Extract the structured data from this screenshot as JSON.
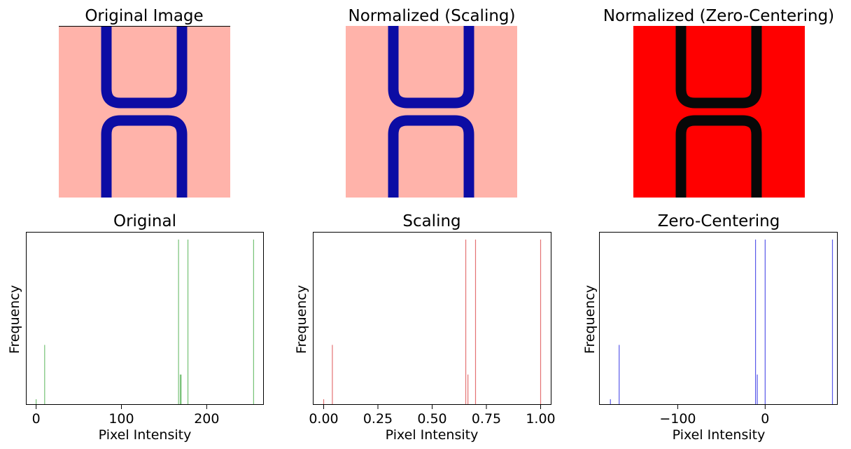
{
  "images": [
    {
      "title": "Original Image",
      "background": "#ffb3aa",
      "shape_color": "#0c0ca4"
    },
    {
      "title": "Normalized (Scaling)",
      "background": "#ffb3aa",
      "shape_color": "#0c0ca4"
    },
    {
      "title": "Normalized (Zero-Centering)",
      "background": "#ff0000",
      "shape_color": "#080808"
    }
  ],
  "chart_data": [
    {
      "type": "bar",
      "title": "Original",
      "xlabel": "Pixel Intensity",
      "ylabel": "Frequency",
      "color": "#2ca02c",
      "xlim": [
        -12,
        267
      ],
      "xticks": [
        0,
        100,
        200
      ],
      "tick_labels": [
        "0",
        "100",
        "200"
      ],
      "y_ticks_shown": false,
      "bars": [
        {
          "x": 0,
          "h": 0.03
        },
        {
          "x": 10,
          "h": 0.36
        },
        {
          "x": 167,
          "h": 1.0
        },
        {
          "x": 169,
          "h": 0.18
        },
        {
          "x": 170,
          "h": 0.18
        },
        {
          "x": 178,
          "h": 1.0
        },
        {
          "x": 255,
          "h": 1.0
        }
      ]
    },
    {
      "type": "bar",
      "title": "Scaling",
      "xlabel": "Pixel Intensity",
      "ylabel": "Frequency",
      "color": "#d62728",
      "xlim": [
        -0.05,
        1.05
      ],
      "xticks": [
        0,
        0.25,
        0.5,
        0.75,
        1.0
      ],
      "tick_labels": [
        "0.00",
        "0.25",
        "0.50",
        "0.75",
        "1.00"
      ],
      "y_ticks_shown": false,
      "bars": [
        {
          "x": 0.0,
          "h": 0.03
        },
        {
          "x": 0.04,
          "h": 0.36
        },
        {
          "x": 0.655,
          "h": 1.0
        },
        {
          "x": 0.665,
          "h": 0.18
        },
        {
          "x": 0.7,
          "h": 1.0
        },
        {
          "x": 1.0,
          "h": 1.0
        }
      ]
    },
    {
      "type": "bar",
      "title": "Zero-Centering",
      "xlabel": "Pixel Intensity",
      "ylabel": "Frequency",
      "color": "#0000dd",
      "xlim": [
        -190,
        83
      ],
      "xticks": [
        -100,
        0
      ],
      "tick_labels": [
        "−100",
        "0"
      ],
      "y_ticks_shown": false,
      "bars": [
        {
          "x": -177,
          "h": 0.03
        },
        {
          "x": -167,
          "h": 0.36
        },
        {
          "x": -11,
          "h": 1.0
        },
        {
          "x": -9,
          "h": 0.18
        },
        {
          "x": 0,
          "h": 1.0
        },
        {
          "x": 77,
          "h": 1.0
        }
      ]
    }
  ]
}
